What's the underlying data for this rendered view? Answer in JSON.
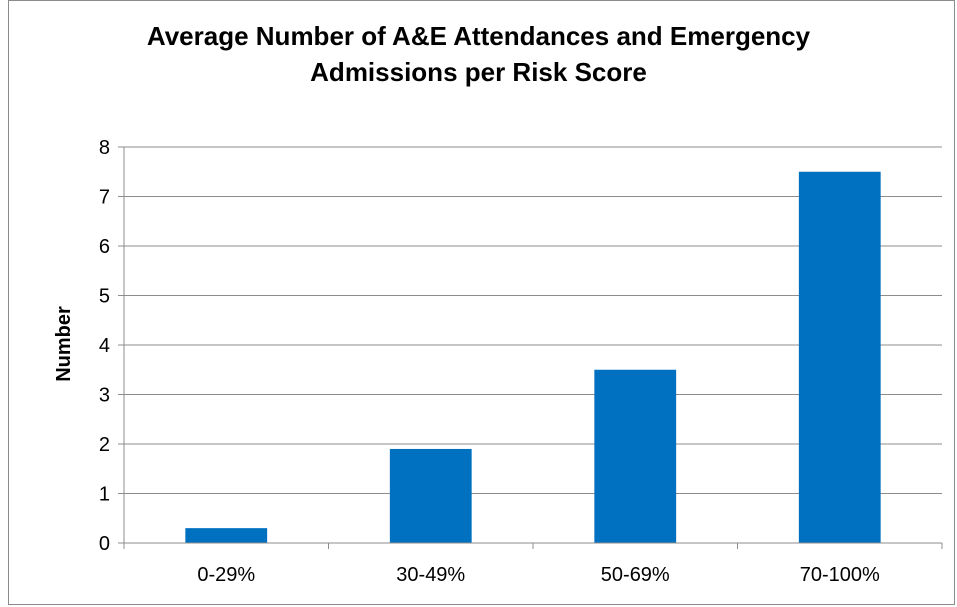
{
  "chart_data": {
    "type": "bar",
    "title_line1": "Average Number of A&E Attendances and Emergency",
    "title_line2": "Admissions per Risk Score",
    "xlabel": "",
    "ylabel": "Number",
    "categories": [
      "0-29%",
      "30-49%",
      "50-69%",
      "70-100%"
    ],
    "values": [
      0.3,
      1.9,
      3.5,
      7.5
    ],
    "ylim": [
      0,
      8
    ],
    "yticks": [
      "0",
      "1",
      "2",
      "3",
      "4",
      "5",
      "6",
      "7",
      "8"
    ],
    "grid": true,
    "legend": "none",
    "bar_color": "#0070C0"
  }
}
